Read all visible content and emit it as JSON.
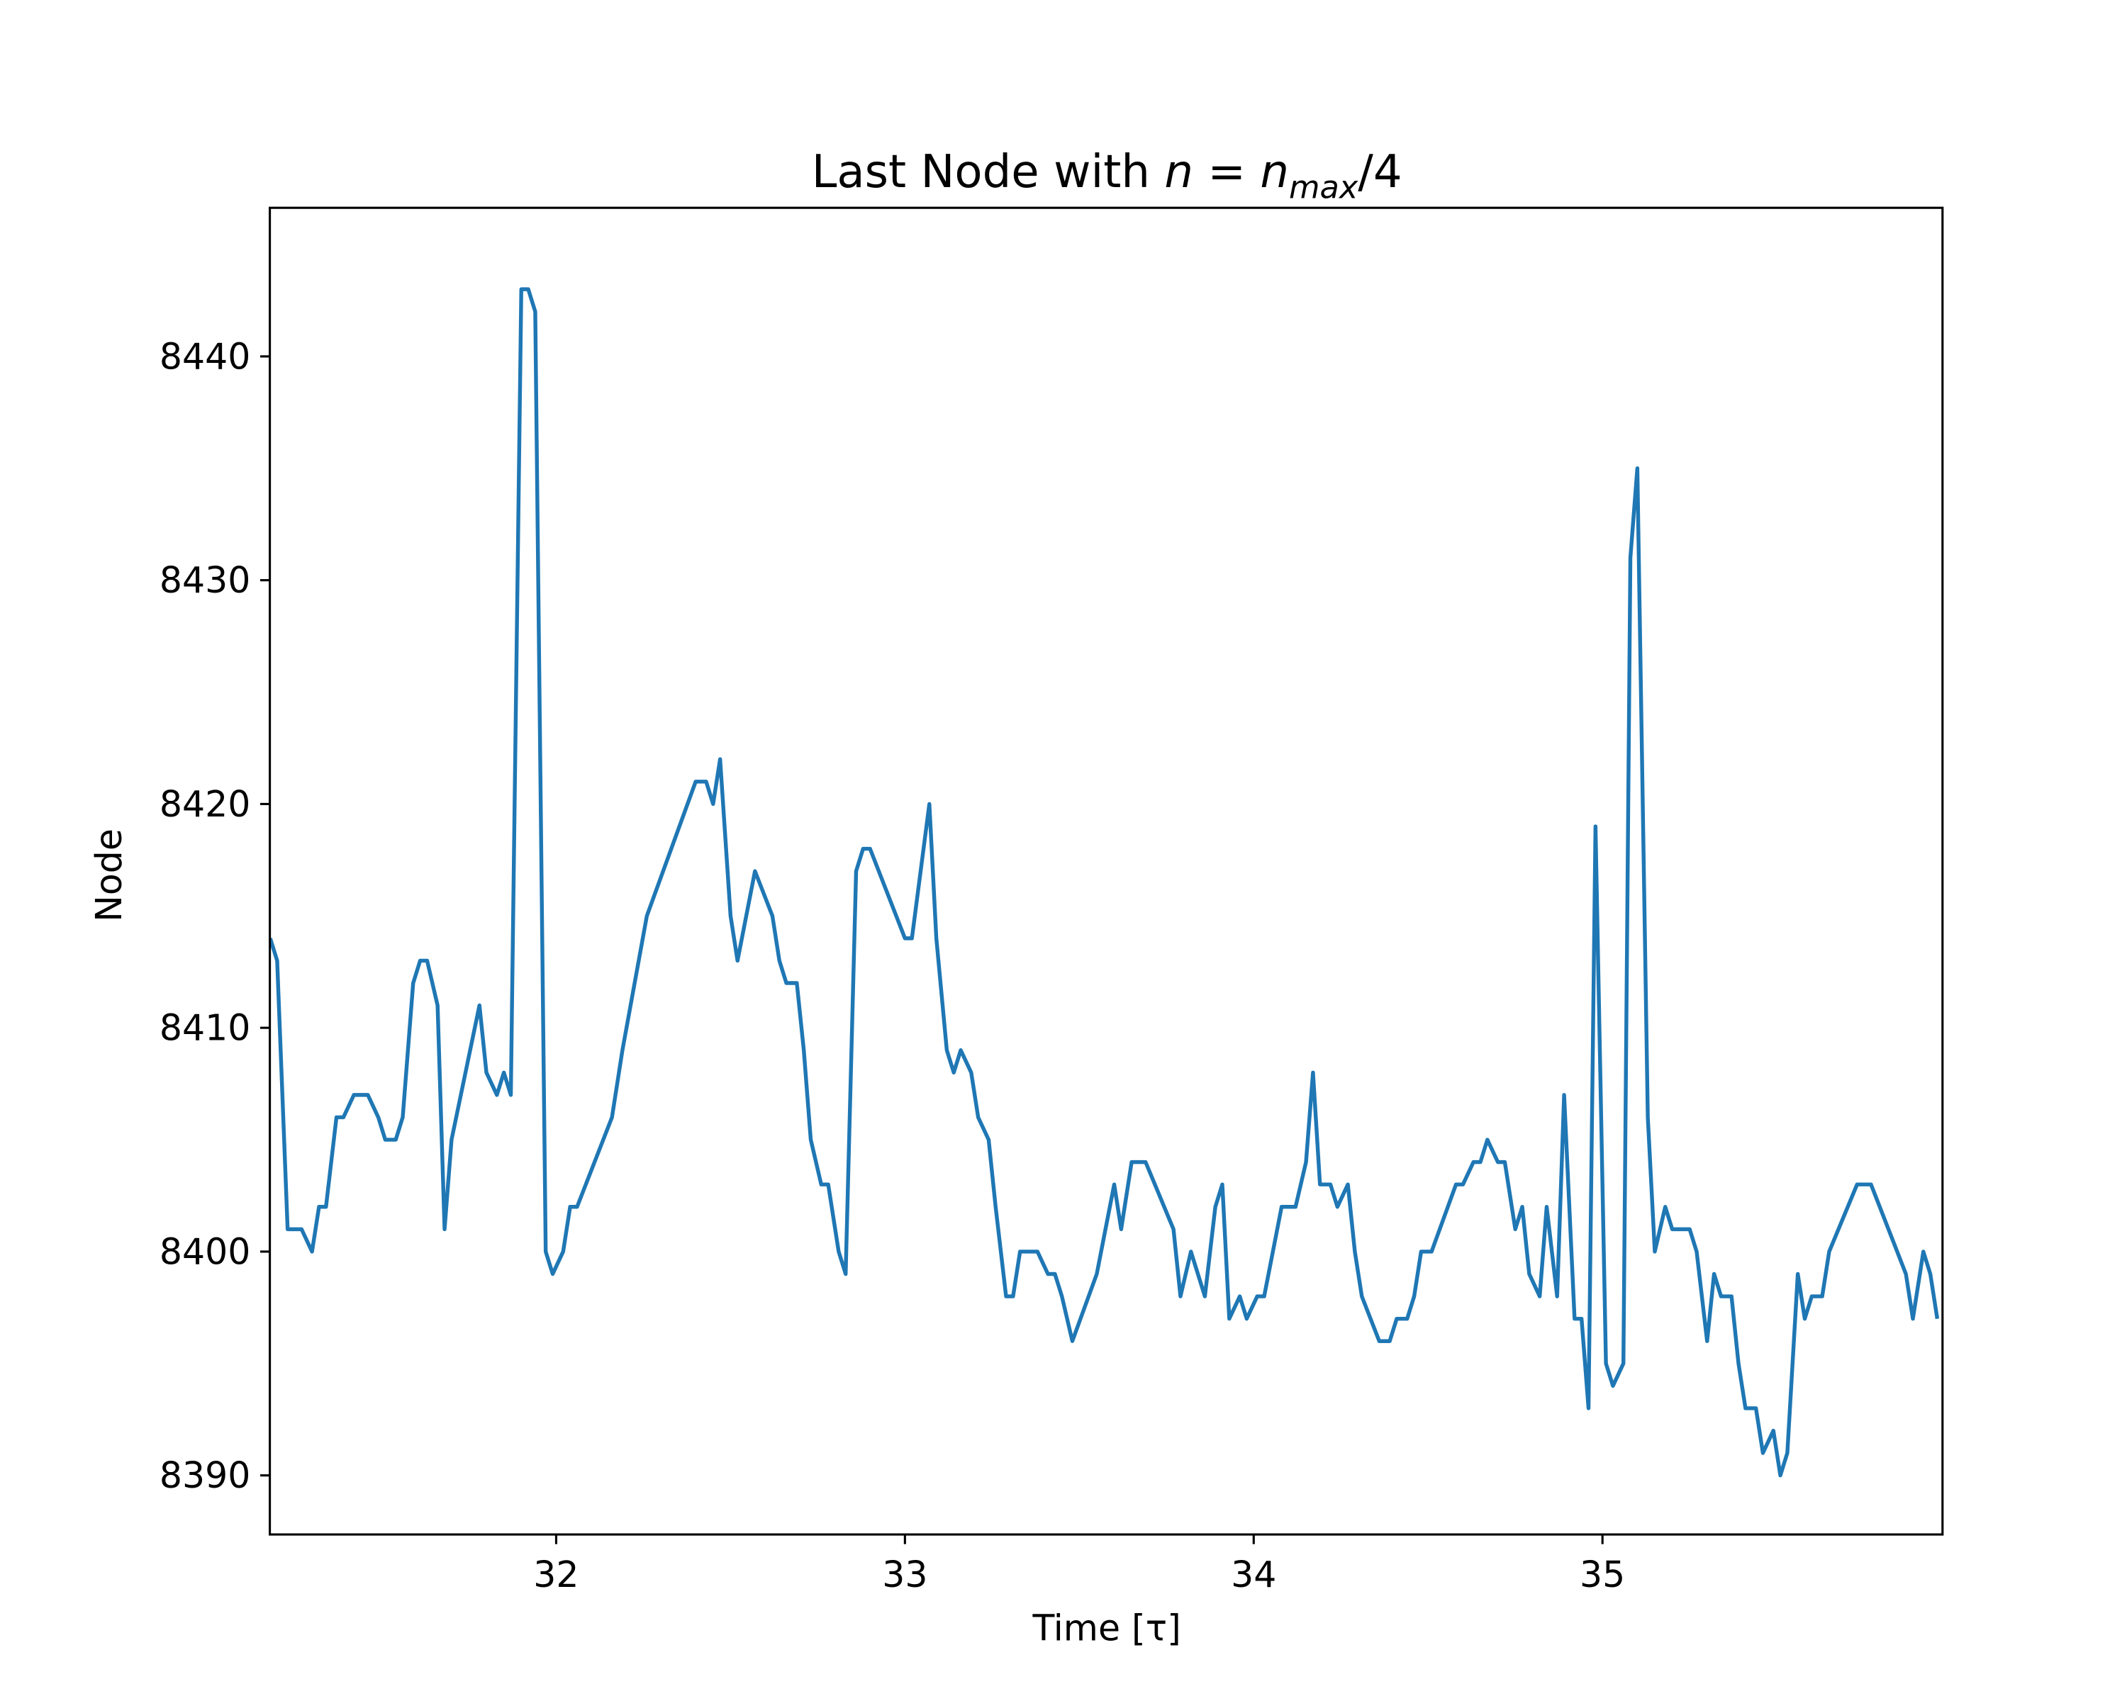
{
  "chart_data": {
    "type": "line",
    "title": {
      "text": "Last Node with",
      "math": "n = n",
      "subscript": "max",
      "suffix": "/4"
    },
    "xlabel": "Time [τ]",
    "ylabel": "Node",
    "color": "#1f77b4",
    "x": [
      31.18,
      31.2,
      31.23,
      31.25,
      31.27,
      31.3,
      31.32,
      31.34,
      31.37,
      31.39,
      31.42,
      31.44,
      31.46,
      31.49,
      31.51,
      31.54,
      31.56,
      31.59,
      31.61,
      31.63,
      31.66,
      31.68,
      31.7,
      31.78,
      31.8,
      31.83,
      31.85,
      31.87,
      31.9,
      31.92,
      31.94,
      31.97,
      31.99,
      32.02,
      32.04,
      32.06,
      32.16,
      32.19,
      32.26,
      32.4,
      32.43,
      32.45,
      32.47,
      32.5,
      32.52,
      32.57,
      32.62,
      32.64,
      32.66,
      32.69,
      32.71,
      32.73,
      32.76,
      32.78,
      32.81,
      32.83,
      32.86,
      32.88,
      32.9,
      33.0,
      33.02,
      33.07,
      33.09,
      33.12,
      33.14,
      33.16,
      33.19,
      33.21,
      33.24,
      33.26,
      33.29,
      33.31,
      33.33,
      33.36,
      33.38,
      33.41,
      33.43,
      33.45,
      33.48,
      33.55,
      33.6,
      33.62,
      33.65,
      33.69,
      33.77,
      33.79,
      33.82,
      33.86,
      33.89,
      33.91,
      33.93,
      33.96,
      33.98,
      34.01,
      34.03,
      34.08,
      34.12,
      34.15,
      34.17,
      34.19,
      34.22,
      34.24,
      34.27,
      34.29,
      34.31,
      34.36,
      34.39,
      34.41,
      34.44,
      34.46,
      34.48,
      34.51,
      34.58,
      34.6,
      34.63,
      34.65,
      34.67,
      34.7,
      34.72,
      34.75,
      34.77,
      34.79,
      34.82,
      34.84,
      34.87,
      34.89,
      34.92,
      34.94,
      34.96,
      34.98,
      35.01,
      35.03,
      35.06,
      35.08,
      35.1,
      35.13,
      35.15,
      35.18,
      35.2,
      35.25,
      35.27,
      35.3,
      35.32,
      35.34,
      35.37,
      35.39,
      35.41,
      35.44,
      35.46,
      35.49,
      35.51,
      35.53,
      35.56,
      35.58,
      35.6,
      35.63,
      35.65,
      35.73,
      35.77,
      35.87,
      35.89,
      35.92,
      35.94,
      35.96
    ],
    "values": [
      8414,
      8413,
      8401,
      8401,
      8401,
      8400,
      8402,
      8402,
      8406,
      8406,
      8407,
      8407,
      8407,
      8406,
      8405,
      8405,
      8406,
      8412,
      8413,
      8413,
      8411,
      8401,
      8405,
      8411,
      8408,
      8407,
      8408,
      8407,
      8443,
      8443,
      8442,
      8400,
      8399,
      8400,
      8402,
      8402,
      8406,
      8409,
      8415,
      8421,
      8421,
      8420,
      8422,
      8415,
      8413,
      8417,
      8415,
      8413,
      8412,
      8412,
      8409,
      8405,
      8403,
      8403,
      8400,
      8399,
      8417,
      8418,
      8418,
      8414,
      8414,
      8420,
      8414,
      8409,
      8408,
      8409,
      8408,
      8406,
      8405,
      8402,
      8398,
      8398,
      8400,
      8400,
      8400,
      8399,
      8399,
      8398,
      8396,
      8399,
      8403,
      8401,
      8404,
      8404,
      8401,
      8398,
      8400,
      8398,
      8402,
      8403,
      8397,
      8398,
      8397,
      8398,
      8398,
      8402,
      8402,
      8404,
      8408,
      8403,
      8403,
      8402,
      8403,
      8400,
      8398,
      8396,
      8396,
      8397,
      8397,
      8398,
      8400,
      8400,
      8403,
      8403,
      8404,
      8404,
      8405,
      8404,
      8404,
      8401,
      8402,
      8399,
      8398,
      8402,
      8398,
      8407,
      8397,
      8397,
      8393,
      8419,
      8395,
      8394,
      8395,
      8431,
      8435,
      8406,
      8400,
      8402,
      8401,
      8401,
      8400,
      8396,
      8399,
      8398,
      8398,
      8395,
      8393,
      8393,
      8391,
      8392,
      8390,
      8391,
      8399,
      8397,
      8398,
      8398,
      8400,
      8403,
      8403,
      8399,
      8397,
      8400,
      8399,
      8397
    ],
    "xlim": [
      31.179,
      35.975
    ],
    "xticks": [
      32,
      33,
      34,
      35
    ],
    "ylim": [
      8387.36,
      8446.64
    ],
    "yticks": [
      8390,
      8400,
      8410,
      8420,
      8430,
      8440
    ]
  }
}
